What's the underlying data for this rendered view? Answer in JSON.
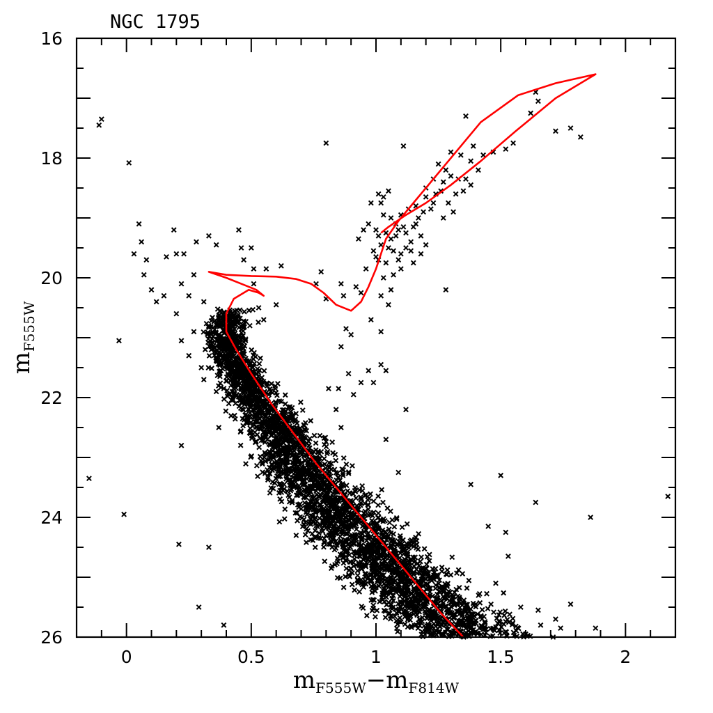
{
  "chart_data": {
    "type": "scatter",
    "title": "NGC 1795",
    "xlabel": {
      "main": "m",
      "sub1": "F555W",
      "dash": "−",
      "main2": "m",
      "sub2": "F814W"
    },
    "ylabel": {
      "main": "m",
      "sub": "F555W"
    },
    "xlim": [
      -0.2,
      2.2
    ],
    "ylim": [
      26,
      16
    ],
    "y_inverted": true,
    "x_ticks": [
      "0",
      "0.5",
      "1",
      "1.5",
      "2"
    ],
    "x_tick_values": [
      0,
      0.5,
      1,
      1.5,
      2
    ],
    "y_ticks": [
      "16",
      "18",
      "20",
      "22",
      "24",
      "26"
    ],
    "y_tick_values": [
      16,
      18,
      20,
      22,
      24,
      26
    ],
    "grid": false,
    "marker": "x",
    "series": [
      {
        "kind": "points",
        "color": "#000000",
        "points": [
          [
            -0.1,
            17.35
          ],
          [
            -0.11,
            17.45
          ],
          [
            0.01,
            18.08
          ],
          [
            0.05,
            19.1
          ],
          [
            0.06,
            19.4
          ],
          [
            0.03,
            19.6
          ],
          [
            0.08,
            19.7
          ],
          [
            0.07,
            19.95
          ],
          [
            0.1,
            20.2
          ],
          [
            0.12,
            20.4
          ],
          [
            0.15,
            20.3
          ],
          [
            0.16,
            19.65
          ],
          [
            0.2,
            19.6
          ],
          [
            0.23,
            19.6
          ],
          [
            0.22,
            20.1
          ],
          [
            0.25,
            20.3
          ],
          [
            0.2,
            20.6
          ],
          [
            0.22,
            21.05
          ],
          [
            0.27,
            20.9
          ],
          [
            0.25,
            21.3
          ],
          [
            0.3,
            21.5
          ],
          [
            -0.03,
            21.05
          ],
          [
            0.19,
            19.2
          ],
          [
            0.28,
            19.4
          ],
          [
            0.33,
            19.3
          ],
          [
            0.36,
            19.45
          ],
          [
            0.27,
            19.95
          ],
          [
            0.31,
            20.4
          ],
          [
            0.33,
            20.8
          ],
          [
            0.34,
            21.2
          ],
          [
            0.31,
            21.7
          ],
          [
            0.36,
            21.9
          ],
          [
            0.41,
            22.1
          ],
          [
            0.37,
            22.5
          ],
          [
            0.22,
            22.8
          ],
          [
            -0.15,
            23.35
          ],
          [
            -0.01,
            23.95
          ],
          [
            0.21,
            24.45
          ],
          [
            0.33,
            24.5
          ],
          [
            0.29,
            25.5
          ],
          [
            0.39,
            25.8
          ],
          [
            0.45,
            19.2
          ],
          [
            0.46,
            19.5
          ],
          [
            0.5,
            19.5
          ],
          [
            0.47,
            19.7
          ],
          [
            0.51,
            19.85
          ],
          [
            0.56,
            19.85
          ],
          [
            0.62,
            19.8
          ],
          [
            0.51,
            20.1
          ],
          [
            0.53,
            20.5
          ],
          [
            0.55,
            20.7
          ],
          [
            0.6,
            20.45
          ],
          [
            0.78,
            19.9
          ],
          [
            0.76,
            20.1
          ],
          [
            0.8,
            20.35
          ],
          [
            0.86,
            20.1
          ],
          [
            0.87,
            20.3
          ],
          [
            0.8,
            17.75
          ],
          [
            0.92,
            20.15
          ],
          [
            0.94,
            20.25
          ],
          [
            0.98,
            20.7
          ],
          [
            1.02,
            20.9
          ],
          [
            0.97,
            21.55
          ],
          [
            0.99,
            21.75
          ],
          [
            1.02,
            21.45
          ],
          [
            1.04,
            21.55
          ],
          [
            0.94,
            21.75
          ],
          [
            0.91,
            21.95
          ],
          [
            0.85,
            21.85
          ],
          [
            0.88,
            20.85
          ],
          [
            0.9,
            20.95
          ],
          [
            0.86,
            21.15
          ],
          [
            0.89,
            21.6
          ],
          [
            0.81,
            21.85
          ],
          [
            0.84,
            22.2
          ],
          [
            0.86,
            22.5
          ],
          [
            1.04,
            22.7
          ],
          [
            1.12,
            22.2
          ],
          [
            1.09,
            23.25
          ],
          [
            1.03,
            24.3
          ],
          [
            1.28,
            20.2
          ],
          [
            1.38,
            23.45
          ],
          [
            1.45,
            24.15
          ],
          [
            1.5,
            23.3
          ],
          [
            1.52,
            24.25
          ],
          [
            1.53,
            24.65
          ],
          [
            1.48,
            25.1
          ],
          [
            1.58,
            25.5
          ],
          [
            1.64,
            23.75
          ],
          [
            1.65,
            25.55
          ],
          [
            1.72,
            25.7
          ],
          [
            1.78,
            25.45
          ],
          [
            1.86,
            24
          ],
          [
            1.88,
            25.85
          ],
          [
            2.17,
            23.65
          ],
          [
            1.71,
            26
          ],
          [
            1.66,
            25.8
          ],
          [
            1.6,
            25.95
          ],
          [
            1.74,
            25.85
          ],
          [
            1.01,
            18.6
          ],
          [
            1.03,
            18.65
          ],
          [
            1.02,
            18.75
          ],
          [
            1.05,
            18.55
          ],
          [
            0.98,
            18.75
          ],
          [
            1.03,
            18.95
          ],
          [
            0.97,
            19.1
          ],
          [
            1.0,
            19.2
          ],
          [
            1.01,
            19.3
          ],
          [
            1.04,
            19.25
          ],
          [
            1.06,
            19.35
          ],
          [
            1.08,
            19.3
          ],
          [
            1.02,
            19.45
          ],
          [
            1.05,
            19.5
          ],
          [
            1.07,
            19.55
          ],
          [
            1.1,
            19.6
          ],
          [
            1.01,
            19.7
          ],
          [
            1.04,
            19.75
          ],
          [
            1.09,
            19.7
          ],
          [
            1.12,
            19.5
          ],
          [
            1.14,
            19.55
          ],
          [
            1.1,
            19.85
          ],
          [
            1.07,
            19.95
          ],
          [
            1.03,
            20.0
          ],
          [
            1.06,
            20.2
          ],
          [
            1.02,
            20.3
          ],
          [
            1.05,
            20.45
          ],
          [
            1.09,
            19.2
          ],
          [
            1.12,
            19.25
          ],
          [
            1.14,
            19.4
          ],
          [
            1.11,
            19.15
          ],
          [
            1.15,
            19.15
          ],
          [
            1.18,
            19.3
          ],
          [
            1.16,
            19.1
          ],
          [
            1.1,
            18.95
          ],
          [
            1.13,
            18.85
          ],
          [
            1.16,
            18.8
          ],
          [
            1.19,
            18.9
          ],
          [
            1.22,
            18.85
          ],
          [
            1.2,
            18.65
          ],
          [
            1.24,
            18.6
          ],
          [
            1.26,
            18.55
          ],
          [
            1.23,
            18.75
          ],
          [
            1.27,
            18.4
          ],
          [
            1.3,
            18.3
          ],
          [
            1.33,
            18.35
          ],
          [
            1.35,
            18.55
          ],
          [
            1.32,
            18.6
          ],
          [
            1.29,
            18.75
          ],
          [
            1.27,
            19.0
          ],
          [
            1.31,
            18.9
          ],
          [
            1.25,
            18.1
          ],
          [
            1.3,
            17.9
          ],
          [
            1.34,
            17.95
          ],
          [
            1.38,
            18.05
          ],
          [
            1.41,
            18.2
          ],
          [
            1.38,
            18.45
          ],
          [
            1.36,
            17.3
          ],
          [
            1.39,
            17.8
          ],
          [
            1.43,
            17.95
          ],
          [
            1.47,
            17.9
          ],
          [
            1.52,
            17.85
          ],
          [
            1.55,
            17.75
          ],
          [
            1.62,
            17.25
          ],
          [
            1.65,
            17.05
          ],
          [
            1.64,
            16.9
          ],
          [
            1.72,
            17.55
          ],
          [
            1.78,
            17.5
          ],
          [
            1.82,
            17.65
          ],
          [
            1.15,
            19.75
          ],
          [
            1.18,
            19.6
          ],
          [
            1.2,
            19.45
          ],
          [
            1.17,
            19.0
          ],
          [
            1.08,
            19.1
          ],
          [
            1.06,
            19.0
          ],
          [
            0.95,
            19.2
          ],
          [
            0.93,
            19.35
          ],
          [
            0.99,
            19.55
          ],
          [
            1.0,
            19.65
          ],
          [
            0.96,
            19.85
          ],
          [
            1.11,
            17.8
          ],
          [
            1.2,
            18.5
          ],
          [
            1.23,
            18.35
          ],
          [
            1.28,
            18.2
          ],
          [
            1.36,
            18.35
          ]
        ]
      },
      {
        "kind": "main-sequence-band",
        "color": "#000000",
        "ridge": [
          [
            0.45,
            20.3
          ],
          [
            0.42,
            20.6
          ],
          [
            0.4,
            21.0
          ],
          [
            0.43,
            21.4
          ],
          [
            0.5,
            21.9
          ],
          [
            0.58,
            22.4
          ],
          [
            0.66,
            22.9
          ],
          [
            0.74,
            23.4
          ],
          [
            0.84,
            23.9
          ],
          [
            0.95,
            24.4
          ],
          [
            1.07,
            24.9
          ],
          [
            1.18,
            25.4
          ],
          [
            1.3,
            25.8
          ],
          [
            1.38,
            26.0
          ]
        ],
        "half_width": [
          0.07,
          0.07,
          0.06,
          0.07,
          0.08,
          0.1,
          0.12,
          0.14,
          0.15,
          0.16,
          0.17,
          0.19,
          0.2,
          0.2
        ],
        "count": 3200,
        "x": [
          0.3,
          1.7
        ],
        "y": [
          20.05,
          26.0
        ]
      },
      {
        "kind": "line",
        "name": "",
        "color": "#ff0000",
        "points": [
          [
            1.35,
            26.0
          ],
          [
            1.26,
            25.6
          ],
          [
            1.16,
            25.1
          ],
          [
            1.06,
            24.6
          ],
          [
            0.96,
            24.1
          ],
          [
            0.86,
            23.6
          ],
          [
            0.76,
            23.1
          ],
          [
            0.67,
            22.6
          ],
          [
            0.58,
            22.1
          ],
          [
            0.5,
            21.6
          ],
          [
            0.44,
            21.2
          ],
          [
            0.4,
            20.9
          ],
          [
            0.4,
            20.6
          ],
          [
            0.43,
            20.35
          ],
          [
            0.49,
            20.2
          ],
          [
            0.53,
            20.25
          ],
          [
            0.55,
            20.3
          ],
          [
            0.52,
            20.2
          ],
          [
            0.46,
            20.1
          ],
          [
            0.4,
            20.0
          ],
          [
            0.33,
            19.9
          ],
          [
            0.4,
            19.95
          ],
          [
            0.5,
            19.97
          ],
          [
            0.6,
            19.98
          ],
          [
            0.68,
            20.02
          ],
          [
            0.74,
            20.1
          ],
          [
            0.79,
            20.25
          ],
          [
            0.84,
            20.45
          ],
          [
            0.9,
            20.55
          ],
          [
            0.94,
            20.4
          ],
          [
            0.97,
            20.15
          ],
          [
            1.0,
            19.85
          ],
          [
            1.04,
            19.35
          ],
          [
            1.09,
            19.05
          ],
          [
            1.15,
            18.75
          ],
          [
            1.22,
            18.4
          ],
          [
            1.31,
            17.95
          ],
          [
            1.42,
            17.4
          ],
          [
            1.57,
            16.95
          ],
          [
            1.72,
            16.75
          ],
          [
            1.88,
            16.6
          ],
          [
            1.72,
            17.0
          ],
          [
            1.56,
            17.55
          ],
          [
            1.42,
            18.05
          ],
          [
            1.3,
            18.45
          ],
          [
            1.2,
            18.75
          ],
          [
            1.12,
            18.95
          ],
          [
            1.05,
            19.15
          ],
          [
            1.02,
            19.25
          ]
        ]
      }
    ]
  }
}
